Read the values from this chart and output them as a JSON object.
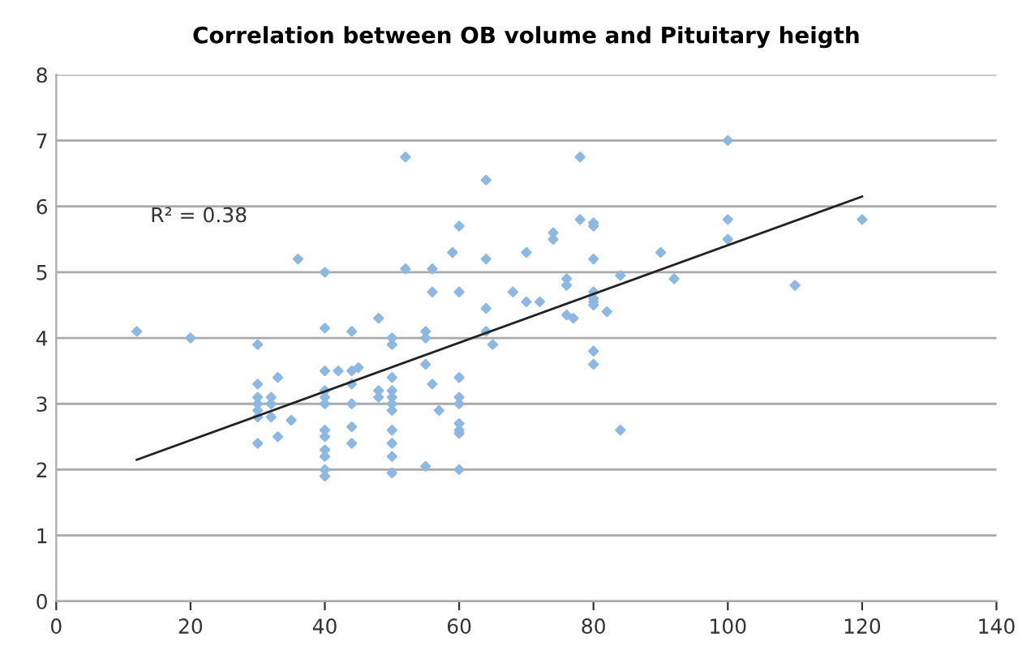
{
  "chart_data": {
    "type": "scatter",
    "title": "Correlation between OB volume and Pituitary heigth",
    "annotations": [
      "R² = 0.38"
    ],
    "xlim": [
      0,
      140
    ],
    "xticks": [
      0,
      20,
      40,
      60,
      80,
      100,
      120,
      140
    ],
    "ylim": [
      0,
      8
    ],
    "yticks": [
      0,
      1,
      2,
      3,
      4,
      5,
      6,
      7,
      8
    ],
    "grid": "y",
    "series": [
      {
        "color": "#8db8e2",
        "marker": "diamond",
        "x": [
          12,
          20,
          30,
          30,
          30,
          30,
          30,
          30,
          30,
          32,
          32,
          32,
          33,
          33,
          35,
          36,
          40,
          40,
          40,
          40,
          40,
          40,
          40,
          40,
          40,
          40,
          40,
          40,
          42,
          44,
          44,
          44,
          44,
          44,
          44,
          45,
          48,
          48,
          48,
          50,
          50,
          50,
          50,
          50,
          50,
          50,
          50,
          50,
          50,
          50,
          52,
          52,
          55,
          55,
          55,
          55,
          56,
          56,
          56,
          57,
          59,
          60,
          60,
          60,
          60,
          60,
          60,
          60,
          60,
          60,
          64,
          64,
          64,
          64,
          65,
          68,
          70,
          70,
          72,
          74,
          74,
          76,
          76,
          76,
          77,
          78,
          78,
          80,
          80,
          80,
          80,
          80,
          80,
          80,
          80,
          80,
          82,
          84,
          84,
          90,
          92,
          100,
          100,
          100,
          110,
          120
        ],
        "values": [
          4.1,
          4.0,
          3.9,
          3.3,
          3.1,
          3.0,
          2.9,
          2.8,
          2.4,
          3.1,
          3.0,
          2.8,
          3.4,
          2.5,
          2.75,
          5.2,
          5.0,
          4.15,
          3.5,
          3.2,
          3.1,
          3.0,
          2.6,
          2.5,
          2.3,
          2.2,
          2.0,
          1.9,
          3.5,
          4.1,
          3.5,
          3.3,
          3.0,
          2.65,
          2.4,
          3.55,
          4.3,
          3.2,
          3.1,
          4.0,
          3.9,
          3.4,
          3.2,
          3.1,
          3.0,
          2.9,
          2.6,
          2.4,
          2.2,
          1.95,
          6.75,
          5.05,
          4.1,
          4.0,
          3.6,
          2.05,
          5.05,
          4.7,
          3.3,
          2.9,
          5.3,
          5.7,
          4.7,
          3.4,
          3.1,
          3.0,
          2.7,
          2.6,
          2.55,
          2.0,
          6.4,
          5.2,
          4.45,
          4.1,
          3.9,
          4.7,
          5.3,
          4.55,
          4.55,
          5.6,
          5.5,
          4.9,
          4.8,
          4.35,
          4.3,
          6.75,
          5.8,
          5.75,
          5.7,
          5.2,
          4.7,
          4.6,
          4.55,
          4.5,
          3.8,
          3.6,
          4.4,
          4.95,
          2.6,
          5.3,
          4.9,
          7.0,
          5.8,
          5.5,
          4.8,
          5.8
        ]
      },
      {
        "type": "line",
        "marker": "none",
        "color": "#222222",
        "x": [
          12,
          120
        ],
        "values": [
          2.15,
          6.15
        ]
      }
    ]
  }
}
